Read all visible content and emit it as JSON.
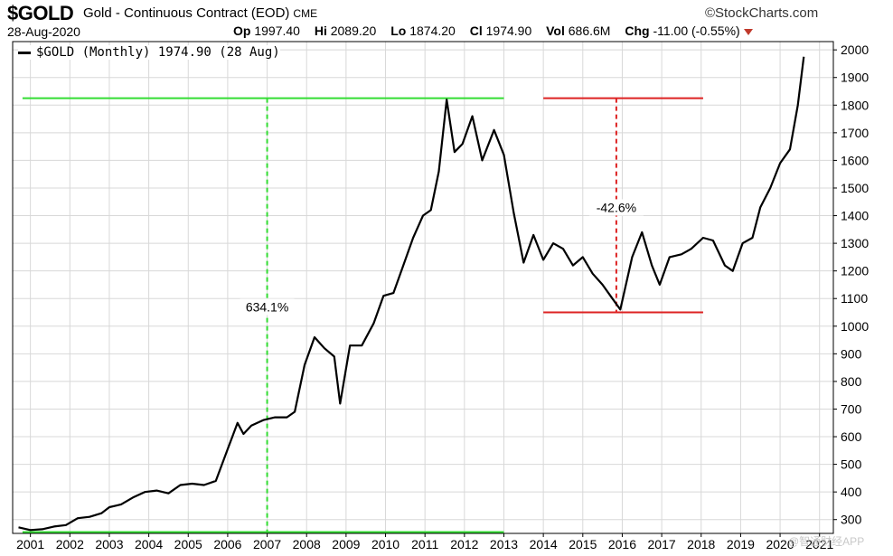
{
  "header": {
    "symbol": "$GOLD",
    "description": "Gold - Continuous Contract (EOD)",
    "exchange": "CME",
    "source": "©StockCharts.com",
    "date": "28-Aug-2020",
    "op_label": "Op",
    "op_value": "1997.40",
    "hi_label": "Hi",
    "hi_value": "2089.20",
    "lo_label": "Lo",
    "lo_value": "1874.20",
    "cl_label": "Cl",
    "cl_value": "1974.90",
    "vol_label": "Vol",
    "vol_value": "686.6M",
    "chg_label": "Chg",
    "chg_value": "-11.00 (-0.55%)"
  },
  "legend": {
    "label": "$GOLD (Monthly) 1974.90 (28 Aug)"
  },
  "watermark": "@智通财经APP",
  "colors": {
    "line": "#000000",
    "green": "#33dd33",
    "red": "#dd2222",
    "grid": "#d8d8d8",
    "down_arrow": "#c0392b"
  },
  "chart_data": {
    "type": "line",
    "series": [
      {
        "x": [
          2000.7,
          2001.0,
          2001.3,
          2001.6,
          2001.9,
          2002.2,
          2002.5,
          2002.8,
          2003.0,
          2003.3,
          2003.6,
          2003.9,
          2004.2,
          2004.5,
          2004.8,
          2005.1,
          2005.4,
          2005.7,
          2006.0,
          2006.25,
          2006.4,
          2006.6,
          2006.9,
          2007.2,
          2007.5,
          2007.7,
          2007.95,
          2008.2,
          2008.45,
          2008.7,
          2008.85,
          2009.1,
          2009.4,
          2009.7,
          2009.95,
          2010.2,
          2010.45,
          2010.7,
          2010.95,
          2011.15,
          2011.35,
          2011.55,
          2011.75,
          2011.95,
          2012.2,
          2012.45,
          2012.75,
          2013.0,
          2013.25,
          2013.5,
          2013.75,
          2014.0,
          2014.25,
          2014.5,
          2014.75,
          2015.0,
          2015.25,
          2015.5,
          2015.75,
          2015.95,
          2016.25,
          2016.5,
          2016.75,
          2016.95,
          2017.2,
          2017.5,
          2017.75,
          2018.05,
          2018.3,
          2018.6,
          2018.8,
          2019.05,
          2019.3,
          2019.5,
          2019.75,
          2020.0,
          2020.25,
          2020.45,
          2020.6
        ],
        "y": [
          272,
          262,
          265,
          275,
          280,
          305,
          310,
          323,
          345,
          355,
          380,
          400,
          405,
          395,
          425,
          430,
          425,
          440,
          555,
          650,
          610,
          640,
          660,
          670,
          670,
          690,
          860,
          960,
          920,
          890,
          720,
          930,
          930,
          1010,
          1110,
          1120,
          1220,
          1320,
          1400,
          1420,
          1560,
          1820,
          1630,
          1660,
          1760,
          1600,
          1710,
          1620,
          1410,
          1230,
          1330,
          1240,
          1300,
          1280,
          1220,
          1250,
          1190,
          1150,
          1100,
          1060,
          1250,
          1340,
          1220,
          1150,
          1250,
          1260,
          1280,
          1320,
          1310,
          1220,
          1200,
          1300,
          1320,
          1430,
          1500,
          1590,
          1640,
          1800,
          1975
        ],
        "values_note": ""
      }
    ],
    "x_ticks": [
      "2001",
      "2002",
      "2003",
      "2004",
      "2005",
      "2006",
      "2007",
      "2008",
      "2009",
      "2010",
      "2011",
      "2012",
      "2013",
      "2014",
      "2015",
      "2016",
      "2017",
      "2018",
      "2019",
      "2020",
      "2021"
    ],
    "y_ticks": [
      300,
      400,
      500,
      600,
      700,
      800,
      900,
      1000,
      1100,
      1200,
      1300,
      1400,
      1500,
      1600,
      1700,
      1800,
      1900,
      2000
    ],
    "xlim": [
      2000.55,
      2021.35
    ],
    "ylim": [
      250,
      2030
    ],
    "grid": true,
    "yaxis_side": "right",
    "annotations": [
      {
        "label": "634.1%",
        "color": "green",
        "x": 2007.0,
        "y_low": 255,
        "y_high": 1825,
        "x_from": 2000.8,
        "x_to": 2013.0,
        "label_y": 1060
      },
      {
        "label": "-42.6%",
        "color": "red",
        "x": 2015.85,
        "y_low": 1050,
        "y_high": 1825,
        "x_from": 2014.0,
        "x_to": 2018.05,
        "label_y": 1420
      }
    ]
  }
}
